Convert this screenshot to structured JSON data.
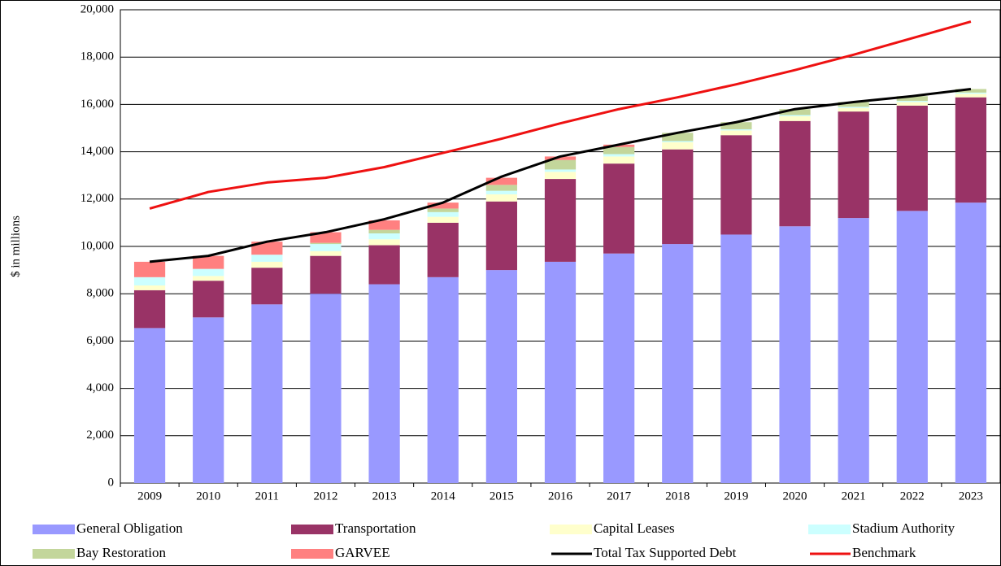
{
  "chart_data": {
    "type": "bar",
    "stacked": true,
    "y_label": "$ in millions",
    "categories": [
      "2009",
      "2010",
      "2011",
      "2012",
      "2013",
      "2014",
      "2015",
      "2016",
      "2017",
      "2018",
      "2019",
      "2020",
      "2021",
      "2022",
      "2023"
    ],
    "series": [
      {
        "name": "General Obligation",
        "type": "bar",
        "color": "#9999ff",
        "values": [
          6550,
          7000,
          7550,
          8000,
          8400,
          8700,
          9000,
          9350,
          9700,
          10100,
          10500,
          10850,
          11200,
          11500,
          11850
        ]
      },
      {
        "name": "Transportation",
        "type": "bar",
        "color": "#993366",
        "values": [
          1600,
          1550,
          1550,
          1600,
          1650,
          2300,
          2900,
          3500,
          3800,
          4000,
          4200,
          4450,
          4500,
          4450,
          4450
        ]
      },
      {
        "name": "Capital Leases",
        "type": "bar",
        "color": "#ffffcc",
        "values": [
          200,
          200,
          250,
          200,
          250,
          250,
          300,
          300,
          300,
          300,
          200,
          200,
          150,
          150,
          150
        ]
      },
      {
        "name": "Stadium Authority",
        "type": "bar",
        "color": "#ccffff",
        "values": [
          350,
          300,
          300,
          300,
          250,
          200,
          150,
          100,
          100,
          50,
          50,
          50,
          50,
          50,
          50
        ]
      },
      {
        "name": "Bay Restoration",
        "type": "bar",
        "color": "#c3d69b",
        "values": [
          0,
          0,
          0,
          50,
          150,
          150,
          250,
          400,
          300,
          350,
          300,
          250,
          200,
          200,
          150
        ]
      },
      {
        "name": "GARVEE",
        "type": "bar",
        "color": "#ff8080",
        "values": [
          650,
          550,
          550,
          450,
          400,
          250,
          300,
          150,
          100,
          0,
          0,
          0,
          0,
          0,
          0
        ]
      },
      {
        "name": "Total Tax Supported Debt",
        "type": "line",
        "color": "#000000",
        "values": [
          9350,
          9600,
          10200,
          10600,
          11150,
          11850,
          12950,
          13800,
          14300,
          14800,
          15250,
          15800,
          16100,
          16350,
          16650
        ]
      },
      {
        "name": "Benchmark",
        "type": "line",
        "color": "#ee1111",
        "values": [
          11600,
          12300,
          12700,
          12900,
          13350,
          13950,
          14550,
          15200,
          15800,
          16300,
          16850,
          17450,
          18100,
          18800,
          19500
        ]
      }
    ],
    "ylim": [
      0,
      20000
    ],
    "yticks": [
      0,
      {
        "value": 2000,
        "label": "2,000"
      },
      {
        "value": 4000,
        "label": "4,000"
      },
      {
        "value": 6000,
        "label": "6,000"
      },
      {
        "value": 8000,
        "label": "8,000"
      },
      {
        "value": 10000,
        "label": "10,000"
      },
      {
        "value": 12000,
        "label": "12,000"
      },
      {
        "value": 14000,
        "label": "14,000"
      },
      {
        "value": 16000,
        "label": "16,000"
      },
      {
        "value": 18000,
        "label": "18,000"
      },
      {
        "value": 20000,
        "label": "20,000"
      }
    ],
    "grid": true,
    "legend": "bottom"
  }
}
